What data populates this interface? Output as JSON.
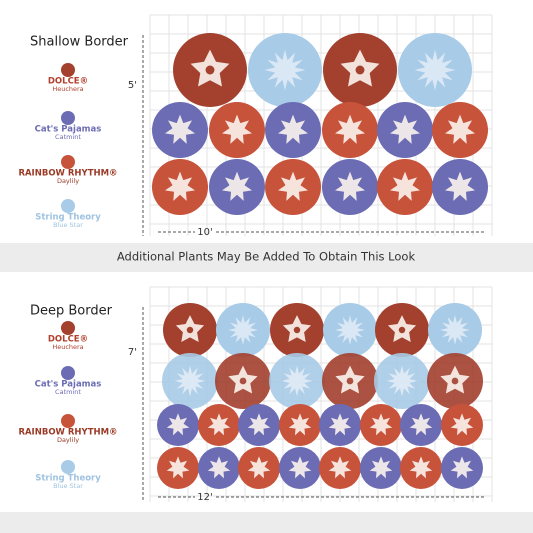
{
  "panels": [
    {
      "title": "Shallow Border",
      "depth_label": "5'",
      "width_label": "10'",
      "legend": [
        {
          "name": "DOLCE®",
          "sub": "Heuchera"
        },
        {
          "name": "Cat's Pajamas",
          "sub": "Catmint"
        },
        {
          "name": "RAINBOW RHYTHM®",
          "sub": "Daylily"
        },
        {
          "name": "String Theory",
          "sub": "Blue Star"
        }
      ]
    },
    {
      "title": "Deep Border",
      "depth_label": "7'",
      "width_label": "12'",
      "legend": [
        {
          "name": "DOLCE®",
          "sub": "Heuchera"
        },
        {
          "name": "Cat's Pajamas",
          "sub": "Catmint"
        },
        {
          "name": "RAINBOW RHYTHM®",
          "sub": "Daylily"
        },
        {
          "name": "String Theory",
          "sub": "Blue Star"
        }
      ]
    }
  ],
  "note": "Additional Plants May Be Added To Obtain This Look"
}
